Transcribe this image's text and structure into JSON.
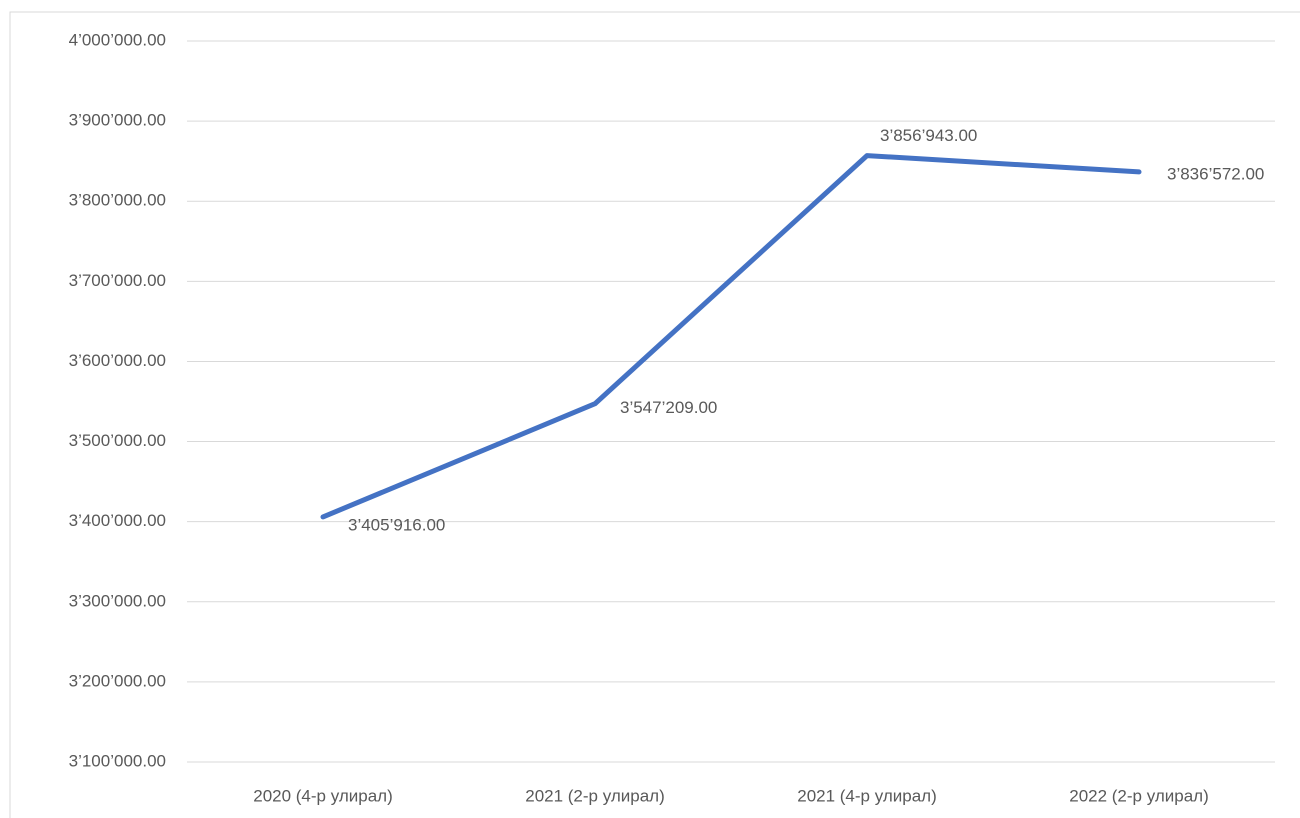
{
  "chart_data": {
    "type": "line",
    "categories": [
      "2020 (4-р улирал)",
      "2021 (2-р улирал)",
      "2021 (4-р улирал)",
      "2022 (2-р улирал)"
    ],
    "series": [
      {
        "color": "#4472c4",
        "values": [
          3405916,
          3547209,
          3856943,
          3836572
        ],
        "value_labels": [
          "3’405’916.00",
          "3’547’209.00",
          "3’856’943.00",
          "3’836’572.00"
        ]
      }
    ],
    "ylim": [
      3100000,
      4000000
    ],
    "yticks": [
      {
        "value": 3100000,
        "label": "3’100’000.00"
      },
      {
        "value": 3200000,
        "label": "3’200’000.00"
      },
      {
        "value": 3300000,
        "label": "3’300’000.00"
      },
      {
        "value": 3400000,
        "label": "3’400’000.00"
      },
      {
        "value": 3500000,
        "label": "3’500’000.00"
      },
      {
        "value": 3600000,
        "label": "3’600’000.00"
      },
      {
        "value": 3700000,
        "label": "3’700’000.00"
      },
      {
        "value": 3800000,
        "label": "3’800’000.00"
      },
      {
        "value": 3900000,
        "label": "3’900’000.00"
      },
      {
        "value": 4000000,
        "label": "4’000’000.00"
      }
    ],
    "grid": true
  }
}
